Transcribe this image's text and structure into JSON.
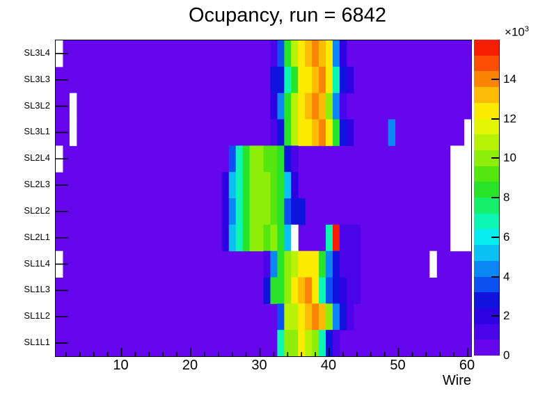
{
  "chart_data": {
    "type": "heatmap",
    "title": "Ocupancy, run = 6842",
    "xlabel": "Wire",
    "ylabel": "",
    "x_range": [
      1,
      60
    ],
    "x_major_ticks": [
      10,
      20,
      30,
      40,
      50,
      60
    ],
    "x_minor_tick_step": 2,
    "y_categories_bottom_to_top": [
      "SL1L1",
      "SL1L2",
      "SL1L3",
      "SL1L4",
      "SL2L1",
      "SL2L2",
      "SL2L3",
      "SL2L4",
      "SL3L1",
      "SL3L2",
      "SL3L3",
      "SL3L4"
    ],
    "grid": false,
    "z_scale": {
      "min": 0,
      "max": 16000,
      "level_size": 800,
      "levels": 20,
      "tick_values": [
        0,
        2000,
        4000,
        6000,
        8000,
        10000,
        12000,
        14000
      ],
      "tick_labels": [
        "0",
        "2",
        "4",
        "6",
        "8",
        "10",
        "12",
        "14"
      ],
      "multiplier_base": "×10",
      "multiplier_exp": "3"
    },
    "palette": [
      "#6606ed",
      "#4a04e9",
      "#2d02e2",
      "#1012dd",
      "#0b51f0",
      "#0b86f5",
      "#09c1f2",
      "#06ecef",
      "#0cf5b2",
      "#15ef6b",
      "#28e428",
      "#55e60f",
      "#8fee09",
      "#b8f207",
      "#e2f502",
      "#fcea00",
      "#fcbc05",
      "#fc8404",
      "#fa4f03",
      "#f71e02"
    ],
    "missing_color": "#ffffff",
    "background_value": 400,
    "rows_top_to_bottom": [
      {
        "label": "SL3L4",
        "missing": [
          1
        ],
        "cells": {
          "32": 1000,
          "33": 3500,
          "34": 8500,
          "35": 10500,
          "36": 12200,
          "37": 13500,
          "38": 14200,
          "39": 13500,
          "40": 12200,
          "41": 4500,
          "42": 1800
        }
      },
      {
        "label": "SL3L3",
        "missing": [],
        "cells": {
          "32": 2500,
          "33": 2600,
          "34": 7000,
          "35": 8500,
          "36": 12200,
          "37": 12300,
          "38": 13500,
          "39": 14200,
          "40": 12200,
          "41": 7000,
          "42": 2500,
          "43": 1800
        }
      },
      {
        "label": "SL3L2",
        "missing": [
          3
        ],
        "cells": {
          "32": 1800,
          "33": 4500,
          "34": 8500,
          "35": 10500,
          "36": 12200,
          "37": 13500,
          "38": 14200,
          "39": 13500,
          "40": 10000,
          "41": 4500,
          "42": 1000
        }
      },
      {
        "label": "SL3L1",
        "missing": [
          3,
          60
        ],
        "cells": {
          "32": 1000,
          "33": 2500,
          "34": 8000,
          "35": 10500,
          "36": 12200,
          "37": 12400,
          "38": 13500,
          "39": 14200,
          "40": 12200,
          "41": 8000,
          "42": 2500,
          "43": 1800,
          "49": 4500
        }
      },
      {
        "label": "SL2L4",
        "missing": [
          1,
          58,
          59,
          60
        ],
        "cells": {
          "26": 3500,
          "27": 6500,
          "28": 8000,
          "29": 10000,
          "30": 10100,
          "31": 9200,
          "32": 9000,
          "33": 8500,
          "34": 2500,
          "35": 900
        }
      },
      {
        "label": "SL2L3",
        "missing": [
          58,
          59,
          60
        ],
        "cells": {
          "25": 2000,
          "26": 5500,
          "27": 7000,
          "28": 8500,
          "29": 10000,
          "30": 10100,
          "31": 9900,
          "32": 9000,
          "33": 8500,
          "34": 5500,
          "35": 2000
        }
      },
      {
        "label": "SL2L2",
        "missing": [
          58,
          59,
          60
        ],
        "cells": {
          "25": 2000,
          "26": 4500,
          "27": 7000,
          "28": 8500,
          "29": 10000,
          "30": 10100,
          "31": 9900,
          "32": 9300,
          "33": 8200,
          "34": 3500,
          "35": 2500,
          "36": 2400
        }
      },
      {
        "label": "SL2L1",
        "missing": [
          35,
          58,
          59,
          60
        ],
        "cells": {
          "25": 2000,
          "26": 5500,
          "27": 7000,
          "28": 8500,
          "29": 10000,
          "30": 10100,
          "31": 9000,
          "32": 10000,
          "33": 8000,
          "34": 5500,
          "40": 7000,
          "41": 15500,
          "42": 1200,
          "43": 1200,
          "44": 1200
        }
      },
      {
        "label": "SL1L4",
        "missing": [
          1,
          55
        ],
        "cells": {
          "31": 1000,
          "32": 4000,
          "33": 8500,
          "34": 10000,
          "35": 10500,
          "36": 12200,
          "37": 12300,
          "38": 12200,
          "39": 8500,
          "40": 4500,
          "41": 2500,
          "42": 1000,
          "43": 1000,
          "44": 1000
        }
      },
      {
        "label": "SL1L3",
        "missing": [],
        "cells": {
          "31": 2500,
          "32": 8000,
          "33": 8500,
          "34": 10000,
          "35": 12200,
          "36": 13500,
          "37": 14200,
          "38": 12200,
          "39": 7000,
          "40": 3500,
          "41": 2500,
          "42": 1800,
          "43": 1000,
          "44": 1000
        }
      },
      {
        "label": "SL1L2",
        "missing": [],
        "cells": {
          "33": 3500,
          "34": 11000,
          "35": 10500,
          "36": 12200,
          "37": 13500,
          "38": 13800,
          "39": 13400,
          "40": 10000,
          "41": 4500,
          "42": 2500,
          "43": 1000
        }
      },
      {
        "label": "SL1L1",
        "missing": [],
        "cells": {
          "33": 7000,
          "34": 10000,
          "35": 10200,
          "36": 12200,
          "37": 11000,
          "38": 10000,
          "39": 7000,
          "40": 2500,
          "41": 1000
        }
      }
    ]
  },
  "layout_hints": {
    "legend_position": "right-colorbar",
    "axis_style": "root-histogram"
  }
}
